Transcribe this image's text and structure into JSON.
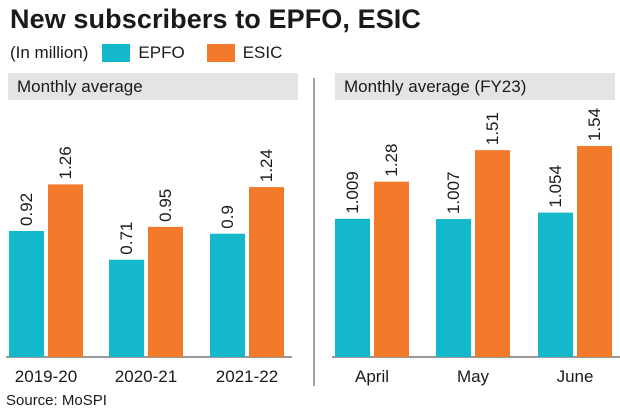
{
  "title": "New subscribers to EPFO, ESIC",
  "legend": {
    "unit": "(In million)",
    "series": [
      "EPFO",
      "ESIC"
    ]
  },
  "colors": {
    "EPFO": "#13b8cb",
    "ESIC": "#f47a2b",
    "panel_header": "#e4e4e4",
    "divider": "#666666"
  },
  "source": "Source: MoSPI",
  "chart_data": [
    {
      "type": "bar",
      "title": "Monthly average",
      "categories": [
        "2019-20",
        "2020-21",
        "2021-22"
      ],
      "series": [
        {
          "name": "EPFO",
          "values": [
            0.92,
            0.71,
            0.9
          ],
          "labels": [
            "0.92",
            "0.71",
            "0.9"
          ]
        },
        {
          "name": "ESIC",
          "values": [
            1.26,
            0.95,
            1.24
          ],
          "labels": [
            "1.26",
            "0.95",
            "1.24"
          ]
        }
      ]
    },
    {
      "type": "bar",
      "title": "Monthly average (FY23)",
      "categories": [
        "April",
        "May",
        "June"
      ],
      "series": [
        {
          "name": "EPFO",
          "values": [
            1.009,
            1.007,
            1.054
          ],
          "labels": [
            "1.009",
            "1.007",
            "1.054"
          ]
        },
        {
          "name": "ESIC",
          "values": [
            1.28,
            1.51,
            1.54
          ],
          "labels": [
            "1.28",
            "1.51",
            "1.54"
          ]
        }
      ]
    }
  ]
}
